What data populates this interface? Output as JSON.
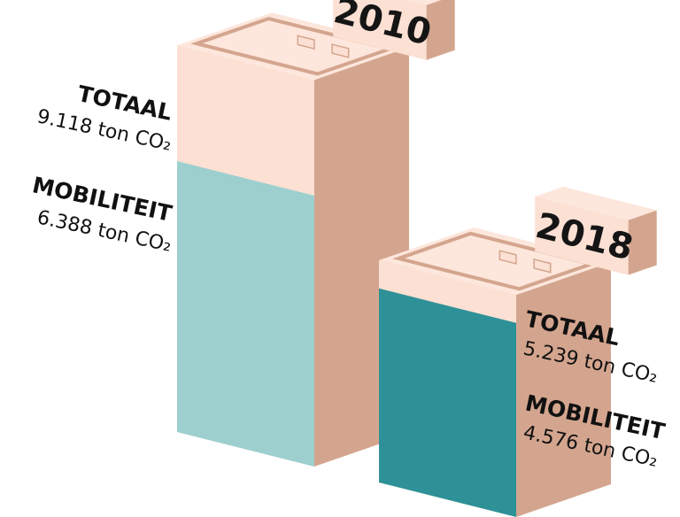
{
  "chart_data": {
    "type": "bar",
    "categories": [
      "2010",
      "2018"
    ],
    "series": [
      {
        "name": "TOTAAL",
        "color": "#fbe0d3",
        "values": [
          9118,
          5239
        ],
        "value_labels": [
          "9.118 ton CO₂",
          "5.239 ton CO₂"
        ]
      },
      {
        "name": "MOBILITEIT",
        "colors": [
          "#9dcfcf",
          "#2f9198"
        ],
        "values": [
          6388,
          4576
        ],
        "value_labels": [
          "6.388 ton CO₂",
          "4.576 ton CO₂"
        ]
      }
    ]
  }
}
